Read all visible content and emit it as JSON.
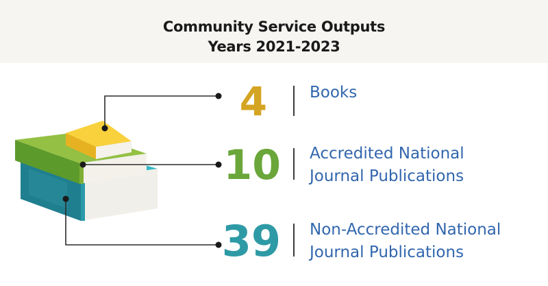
{
  "title": {
    "line1": "Community Service Outputs",
    "line2": "Years 2021-2023"
  },
  "items": [
    {
      "value": "4",
      "label_lines": [
        "Books"
      ],
      "color": "#d4a423"
    },
    {
      "value": "10",
      "label_lines": [
        "Accredited National",
        "Journal Publications"
      ],
      "color": "#6aa63a"
    },
    {
      "value": "39",
      "label_lines": [
        "Non-Accredited National",
        "Journal Publications"
      ],
      "color": "#2e9aa5"
    }
  ],
  "colors": {
    "label_text": "#3166ad",
    "book_yellow": "#f6c935",
    "book_green": "#8dbb3e",
    "book_teal": "#2ea6b6"
  }
}
